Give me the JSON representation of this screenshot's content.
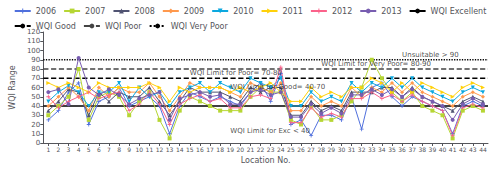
{
  "chart_data": {
    "type": "line",
    "x": [
      1,
      2,
      3,
      4,
      5,
      6,
      7,
      8,
      9,
      10,
      11,
      12,
      13,
      14,
      15,
      16,
      17,
      18,
      19,
      20,
      21,
      22,
      23,
      24,
      25,
      26,
      27,
      28,
      29,
      30,
      31,
      32,
      33,
      34,
      35,
      36,
      37,
      38,
      39,
      40,
      41,
      42,
      43,
      44
    ],
    "xlim": [
      0.5,
      44.5
    ],
    "xticks": [
      1,
      2,
      3,
      4,
      5,
      6,
      7,
      8,
      9,
      10,
      11,
      12,
      13,
      14,
      15,
      16,
      17,
      18,
      19,
      20,
      21,
      22,
      23,
      24,
      25,
      26,
      27,
      28,
      29,
      30,
      31,
      32,
      33,
      34,
      35,
      36,
      37,
      38,
      39,
      40,
      41,
      42,
      43,
      44
    ],
    "ylim": [
      0,
      120
    ],
    "yticks": [
      0,
      10,
      20,
      30,
      40,
      50,
      60,
      70,
      80,
      90,
      100,
      110,
      120
    ],
    "xlabel": "Location No.",
    "ylabel": "WQI Range",
    "grid": false,
    "legend": "top",
    "series": [
      {
        "name": "2006",
        "marker": "plus",
        "values": [
          25,
          35,
          55,
          65,
          20,
          45,
          50,
          60,
          40,
          45,
          50,
          40,
          10,
          40,
          55,
          50,
          45,
          50,
          45,
          40,
          55,
          65,
          45,
          75,
          20,
          25,
          8,
          30,
          30,
          25,
          50,
          15,
          60,
          65,
          50,
          40,
          50,
          45,
          40,
          35,
          10,
          40,
          45,
          40
        ]
      },
      {
        "name": "2007",
        "marker": "square",
        "values": [
          30,
          40,
          50,
          80,
          25,
          50,
          55,
          50,
          30,
          45,
          55,
          25,
          5,
          35,
          50,
          45,
          40,
          35,
          35,
          35,
          50,
          60,
          55,
          55,
          25,
          20,
          40,
          25,
          25,
          30,
          45,
          60,
          90,
          70,
          55,
          45,
          55,
          40,
          35,
          30,
          5,
          35,
          40,
          35
        ]
      },
      {
        "name": "2008",
        "marker": "triangle",
        "values": [
          35,
          45,
          58,
          55,
          30,
          55,
          45,
          55,
          50,
          50,
          60,
          45,
          30,
          45,
          60,
          55,
          55,
          55,
          50,
          45,
          60,
          55,
          60,
          60,
          30,
          30,
          45,
          35,
          40,
          35,
          55,
          55,
          55,
          60,
          60,
          50,
          60,
          50,
          45,
          40,
          35,
          45,
          50,
          45
        ]
      },
      {
        "name": "2009",
        "marker": "diamond",
        "values": [
          40,
          50,
          60,
          50,
          35,
          60,
          50,
          60,
          55,
          55,
          65,
          50,
          35,
          50,
          65,
          60,
          60,
          60,
          55,
          50,
          65,
          60,
          55,
          65,
          35,
          35,
          50,
          40,
          45,
          40,
          60,
          50,
          60,
          55,
          65,
          55,
          65,
          55,
          50,
          45,
          40,
          50,
          55,
          50
        ]
      },
      {
        "name": "2010",
        "marker": "triangle_down",
        "values": [
          45,
          55,
          62,
          55,
          40,
          55,
          55,
          65,
          45,
          60,
          50,
          55,
          40,
          55,
          60,
          65,
          55,
          65,
          60,
          55,
          70,
          65,
          60,
          70,
          40,
          40,
          55,
          45,
          50,
          45,
          65,
          55,
          65,
          60,
          70,
          60,
          70,
          60,
          55,
          50,
          45,
          55,
          60,
          55
        ]
      },
      {
        "name": "2011",
        "marker": "triangle_right",
        "values": [
          65,
          60,
          65,
          60,
          55,
          65,
          60,
          60,
          60,
          60,
          65,
          60,
          45,
          60,
          55,
          60,
          60,
          60,
          55,
          60,
          55,
          60,
          65,
          55,
          45,
          45,
          60,
          50,
          55,
          50,
          60,
          60,
          70,
          65,
          55,
          65,
          55,
          65,
          60,
          55,
          50,
          60,
          65,
          60
        ]
      },
      {
        "name": "2012",
        "marker": "plus",
        "values": [
          50,
          38,
          45,
          50,
          55,
          48,
          52,
          55,
          35,
          42,
          55,
          42,
          20,
          42,
          48,
          52,
          45,
          48,
          38,
          38,
          50,
          52,
          48,
          82,
          22,
          22,
          38,
          28,
          32,
          28,
          48,
          48,
          55,
          48,
          52,
          45,
          52,
          45,
          40,
          35,
          8,
          38,
          42,
          38
        ]
      },
      {
        "name": "2013",
        "marker": "circle",
        "values": [
          55,
          58,
          42,
          92,
          60,
          52,
          58,
          52,
          42,
          48,
          52,
          55,
          25,
          48,
          52,
          55,
          50,
          52,
          42,
          42,
          55,
          58,
          52,
          55,
          28,
          28,
          42,
          32,
          38,
          32,
          52,
          52,
          58,
          52,
          58,
          50,
          58,
          50,
          45,
          40,
          25,
          42,
          48,
          42
        ]
      }
    ],
    "hlines": [
      {
        "name": "WQI Excellent",
        "y": 40,
        "line_style": "solid",
        "color": "#000000"
      },
      {
        "name": "WQI Good",
        "y": 70,
        "line_style": "dashed",
        "color": "#000000"
      },
      {
        "name": "WQI Poor",
        "y": 80,
        "line_style": "dashed",
        "color": "#444444"
      },
      {
        "name": "WQI Very Poor",
        "y": 90,
        "line_style": "dotted",
        "color": "#000000"
      }
    ],
    "annotations": [
      {
        "text": "Unsuitable > 90",
        "x": 36,
        "y": 91.5
      },
      {
        "text": "WQI Limit for Very Poor= 80-90",
        "x": 28,
        "y": 81.5
      },
      {
        "text": "WQI Limit for Poor= 70-80",
        "x": 15,
        "y": 71.5
      },
      {
        "text": "WQI Limit for Good= 40-70",
        "x": 19,
        "y": 56.5
      },
      {
        "text": "WQI Limit for Exc < 40",
        "x": 19,
        "y": 9
      }
    ]
  }
}
